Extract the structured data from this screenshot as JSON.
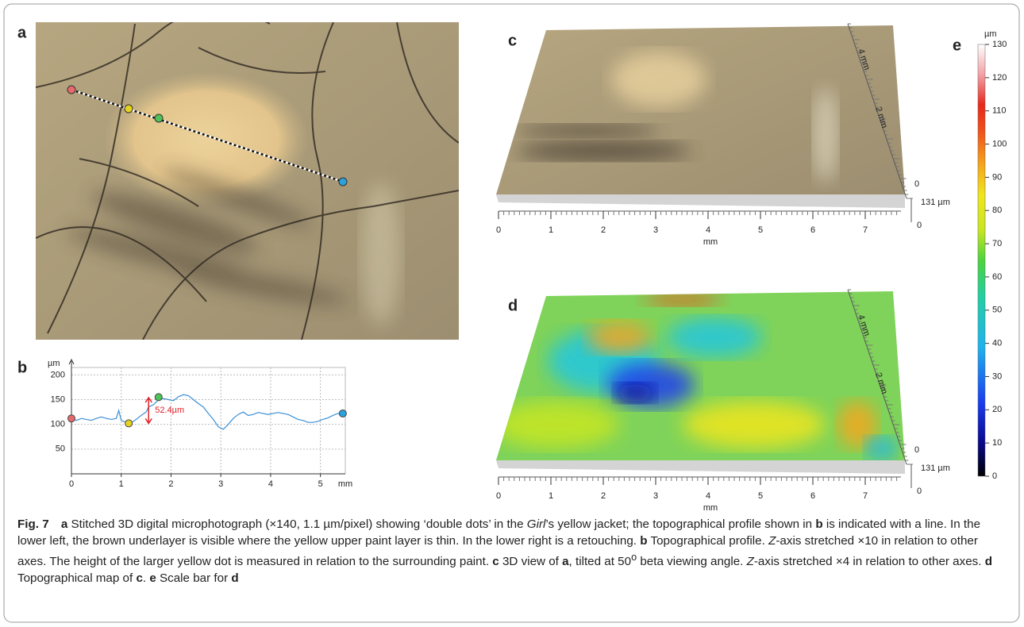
{
  "panel_labels": [
    "a",
    "b",
    "c",
    "d",
    "e"
  ],
  "chart_data": {
    "type": "line",
    "y_label": "µm",
    "x_label": "mm",
    "x": [
      0,
      0.1,
      0.2,
      0.3,
      0.4,
      0.5,
      0.6,
      0.7,
      0.8,
      0.9,
      0.95,
      1.0,
      1.1,
      1.2,
      1.3,
      1.4,
      1.5,
      1.55,
      1.65,
      1.75,
      1.85,
      1.95,
      2.05,
      2.15,
      2.25,
      2.35,
      2.45,
      2.55,
      2.65,
      2.75,
      2.85,
      2.95,
      3.05,
      3.15,
      3.25,
      3.35,
      3.45,
      3.55,
      3.65,
      3.75,
      3.85,
      3.95,
      4.05,
      4.15,
      4.25,
      4.35,
      4.45,
      4.55,
      4.65,
      4.75,
      4.85,
      4.95,
      5.05,
      5.15,
      5.25,
      5.35,
      5.45
    ],
    "series": [
      {
        "color": "#3a8fd6",
        "values": [
          112,
          108,
          112,
          110,
          108,
          112,
          115,
          112,
          110,
          112,
          128,
          108,
          104,
          103,
          110,
          118,
          125,
          135,
          140,
          150,
          152,
          150,
          148,
          156,
          160,
          158,
          150,
          142,
          135,
          122,
          110,
          95,
          90,
          100,
          112,
          120,
          125,
          118,
          120,
          124,
          122,
          120,
          122,
          124,
          122,
          120,
          115,
          110,
          108,
          104,
          104,
          106,
          110,
          113,
          118,
          122,
          122
        ]
      }
    ],
    "markers": [
      {
        "x": 0,
        "y": 112,
        "color": "#e8696b"
      },
      {
        "x": 1.15,
        "y": 102,
        "color": "#e6d21e"
      },
      {
        "x": 1.75,
        "y": 155,
        "color": "#4fc35a"
      },
      {
        "x": 5.45,
        "y": 122,
        "color": "#2aa3dc"
      }
    ],
    "annotation": {
      "text": "52.4µm",
      "x": 1.55,
      "y": [
        102,
        154
      ],
      "color": "#e0202a"
    },
    "xlim": [
      0,
      5.5
    ],
    "ylim": [
      0,
      215
    ],
    "xticks": [
      0,
      1,
      2,
      3,
      4,
      5
    ],
    "yticks": [
      50,
      100,
      150,
      200
    ],
    "grid": true
  },
  "views": [
    {
      "x_ticks": [
        0,
        1,
        2,
        3,
        4,
        5,
        6,
        7
      ],
      "x_unit": "mm",
      "depth_labels": [
        "4 mm",
        "2 mm",
        "0"
      ],
      "height_label": "131 µm",
      "height_zero": "0"
    },
    {
      "x_ticks": [
        0,
        1,
        2,
        3,
        4,
        5,
        6,
        7
      ],
      "x_unit": "mm",
      "depth_labels": [
        "4 mm",
        "2 mm",
        "0"
      ],
      "height_label": "131 µm",
      "height_zero": "0"
    }
  ],
  "colorbar": {
    "unit": "µm",
    "lim": [
      0,
      130
    ],
    "ticks": [
      0,
      10,
      20,
      30,
      40,
      50,
      60,
      70,
      80,
      90,
      100,
      110,
      120,
      130
    ]
  },
  "caption": [
    "Fig. 7",
    "a",
    " Stitched 3D digital microphotograph (×140, 1.1 µm/pixel) showing ‘double dots’ in the ",
    "Girl",
    "’s yellow jacket; the topographical profile shown in ",
    "b",
    " is indicated with a line. In the lower left, the brown underlayer is visible where the yellow upper paint layer is thin. In the lower right is a retouching. ",
    "b",
    " Topographical profile. ",
    "Z",
    "-axis stretched ×10 in relation to other axes. The height of the larger yellow dot is measured in relation to the surrounding paint. ",
    "c",
    " 3D view of ",
    "a",
    ", tilted at 50",
    "o",
    " beta viewing angle. ",
    "Z",
    "-axis stretched ×4 in relation to other axes. ",
    "d",
    " Topographical map of ",
    "c",
    ". ",
    "e",
    " Scale bar for ",
    "d"
  ]
}
